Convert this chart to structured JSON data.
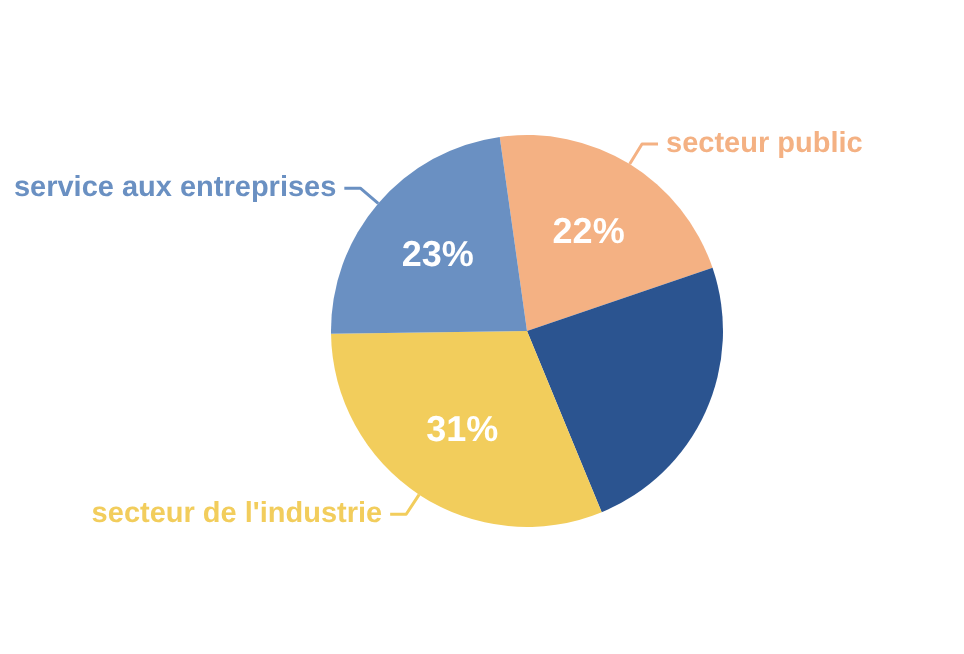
{
  "chart_data": {
    "type": "pie",
    "categories": [
      "secteur public",
      null,
      "secteur de l'industrie",
      "service aux entreprises"
    ],
    "values": [
      22,
      24,
      31,
      23
    ],
    "colors": [
      "#f4b183",
      "#2b5490",
      "#f2cd5c",
      "#6a90c2"
    ],
    "value_labels": [
      "22%",
      null,
      "31%",
      "23%"
    ]
  }
}
